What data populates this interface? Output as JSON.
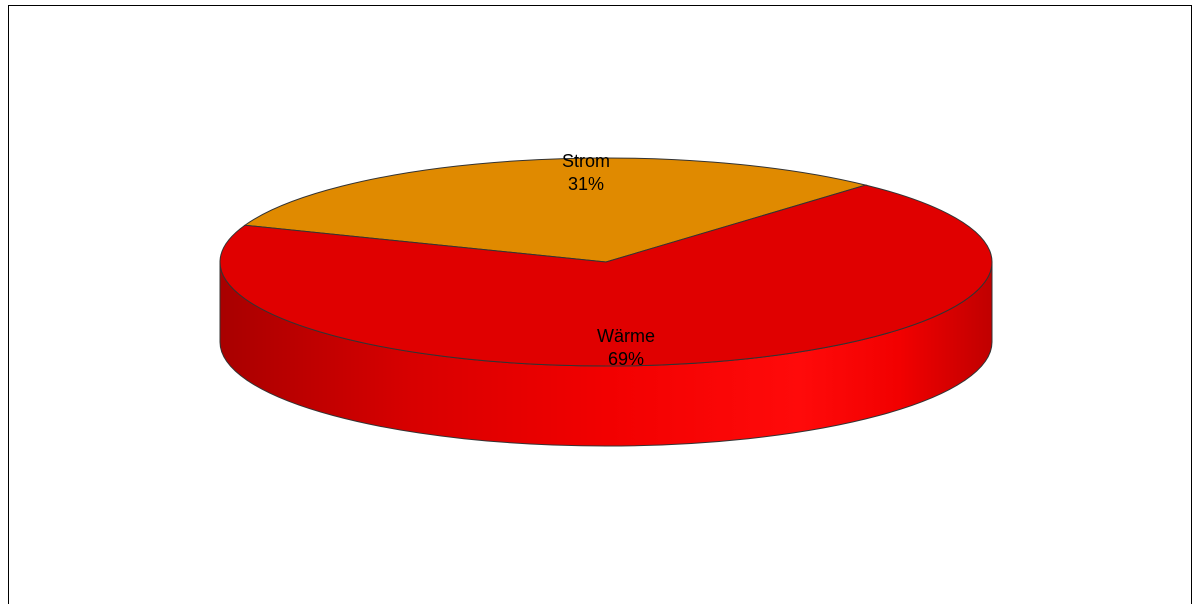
{
  "chart_data": {
    "type": "pie",
    "style": "3d",
    "title": "",
    "slices": [
      {
        "name": "Strom",
        "value": 31,
        "label": "31%",
        "color": "#E08A00"
      },
      {
        "name": "Wärme",
        "value": 69,
        "label": "69%",
        "color": "#E00000"
      }
    ],
    "legend": "none",
    "labels_on_slices": true
  },
  "colors": {
    "background": "#ffffff",
    "outline": "#333333",
    "side_dark": "#A80000",
    "side_light": "#FF1A1A"
  }
}
